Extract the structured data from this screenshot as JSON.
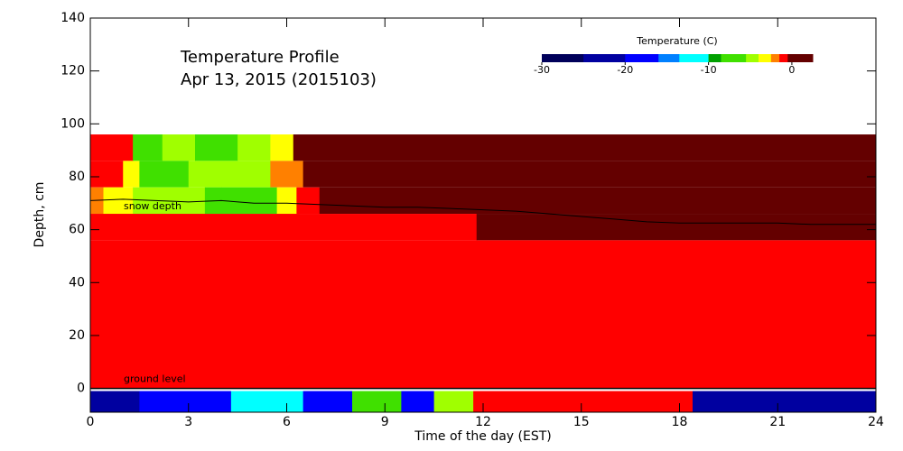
{
  "chart_data": {
    "type": "heatmap",
    "title": "Temperature Profile",
    "subtitle": "Apr 13, 2015 (2015103)",
    "xlabel": "Time of the day (EST)",
    "ylabel": "Depth, cm",
    "xlim": [
      0,
      24
    ],
    "xticks": [
      0,
      3,
      6,
      9,
      12,
      15,
      18,
      21,
      24
    ],
    "ylim": [
      -9,
      140
    ],
    "yticks": [
      0,
      20,
      40,
      60,
      80,
      100,
      120,
      140
    ],
    "colorbar": {
      "title": "Temperature (C)",
      "bins": [
        -30,
        -25,
        -20,
        -16,
        -13.5,
        -10,
        -8.5,
        -5.5,
        -4,
        -2.5,
        -1.5,
        -0.5,
        2.5
      ],
      "colors": [
        "#00005a",
        "#0000a0",
        "#0000ff",
        "#0080ff",
        "#00ffff",
        "#00a000",
        "#40e000",
        "#a0ff00",
        "#ffff00",
        "#ff8000",
        "#ff0000",
        "#640000"
      ],
      "ticks": [
        -30,
        -20,
        -10,
        0
      ]
    },
    "rows": [
      {
        "y": [
          86,
          96
        ],
        "x": [
          0,
          1.3,
          2.2,
          3.2,
          4.5,
          5.5,
          6.2,
          24
        ],
        "values": [
          -1,
          -6,
          -5,
          -7,
          -5,
          -3,
          1
        ]
      },
      {
        "y": [
          76,
          86
        ],
        "x": [
          0,
          1,
          1.5,
          3,
          4,
          5.5,
          6.5,
          24
        ],
        "values": [
          -1,
          -3,
          -7,
          -5,
          -5,
          -2,
          1
        ]
      },
      {
        "y": [
          66,
          76
        ],
        "x": [
          0,
          0.4,
          1.3,
          3.5,
          5.7,
          6.3,
          7,
          24
        ],
        "values": [
          -2,
          -3,
          -5,
          -7,
          -4,
          -1,
          1
        ]
      },
      {
        "y": [
          56,
          66
        ],
        "x": [
          0,
          11.8,
          24
        ],
        "values": [
          -1,
          1
        ]
      },
      {
        "y": [
          0,
          56
        ],
        "x": [
          0,
          24
        ],
        "values": [
          -1
        ]
      },
      {
        "y": [
          -9,
          -1
        ],
        "x": [
          0,
          1.5,
          4.3,
          6.5,
          8,
          9.5,
          10.5,
          11.7,
          18.4,
          24
        ],
        "values": [
          -24,
          -20,
          -13,
          -18,
          -8,
          -17,
          -5,
          -1,
          -25
        ]
      }
    ],
    "snow_depth": {
      "label": "snow depth",
      "x": [
        0,
        1,
        2,
        3,
        4,
        5,
        6,
        7,
        8,
        9,
        10,
        11,
        12,
        13,
        14,
        15,
        16,
        17,
        18,
        19,
        20,
        21,
        22,
        23,
        24
      ],
      "y": [
        71,
        71.5,
        71,
        70.5,
        71,
        70,
        70,
        69.5,
        69,
        68.5,
        68.5,
        68,
        67.5,
        67,
        66,
        65,
        64,
        63,
        62.5,
        62.5,
        62.5,
        62.5,
        62,
        62,
        62
      ]
    },
    "ground_level": {
      "label": "ground level",
      "y": 0
    }
  }
}
